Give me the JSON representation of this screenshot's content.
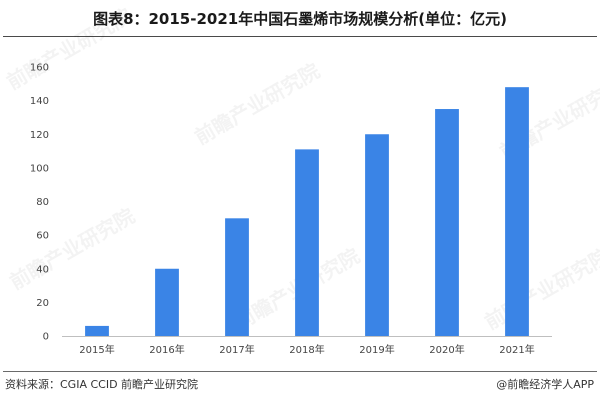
{
  "page": {
    "footer_source": "资料来源：CGIA CCID 前瞻产业研究院",
    "footer_credit": "@前瞻经济学人APP",
    "watermark": "前瞻产业研究院"
  },
  "chart_data": {
    "type": "bar",
    "title": "图表8：2015-2021年中国石墨烯市场规模分析(单位：亿元)",
    "categories": [
      "2015年",
      "2016年",
      "2017年",
      "2018年",
      "2019年",
      "2020年",
      "2021年"
    ],
    "values": [
      6,
      40,
      70,
      111,
      120,
      135,
      148
    ],
    "ylim": [
      0,
      160
    ],
    "yticks": [
      0,
      20,
      40,
      60,
      80,
      100,
      120,
      140,
      160
    ],
    "bar_color": "#3a84e6",
    "grid": false,
    "xlabel": "",
    "ylabel": ""
  }
}
